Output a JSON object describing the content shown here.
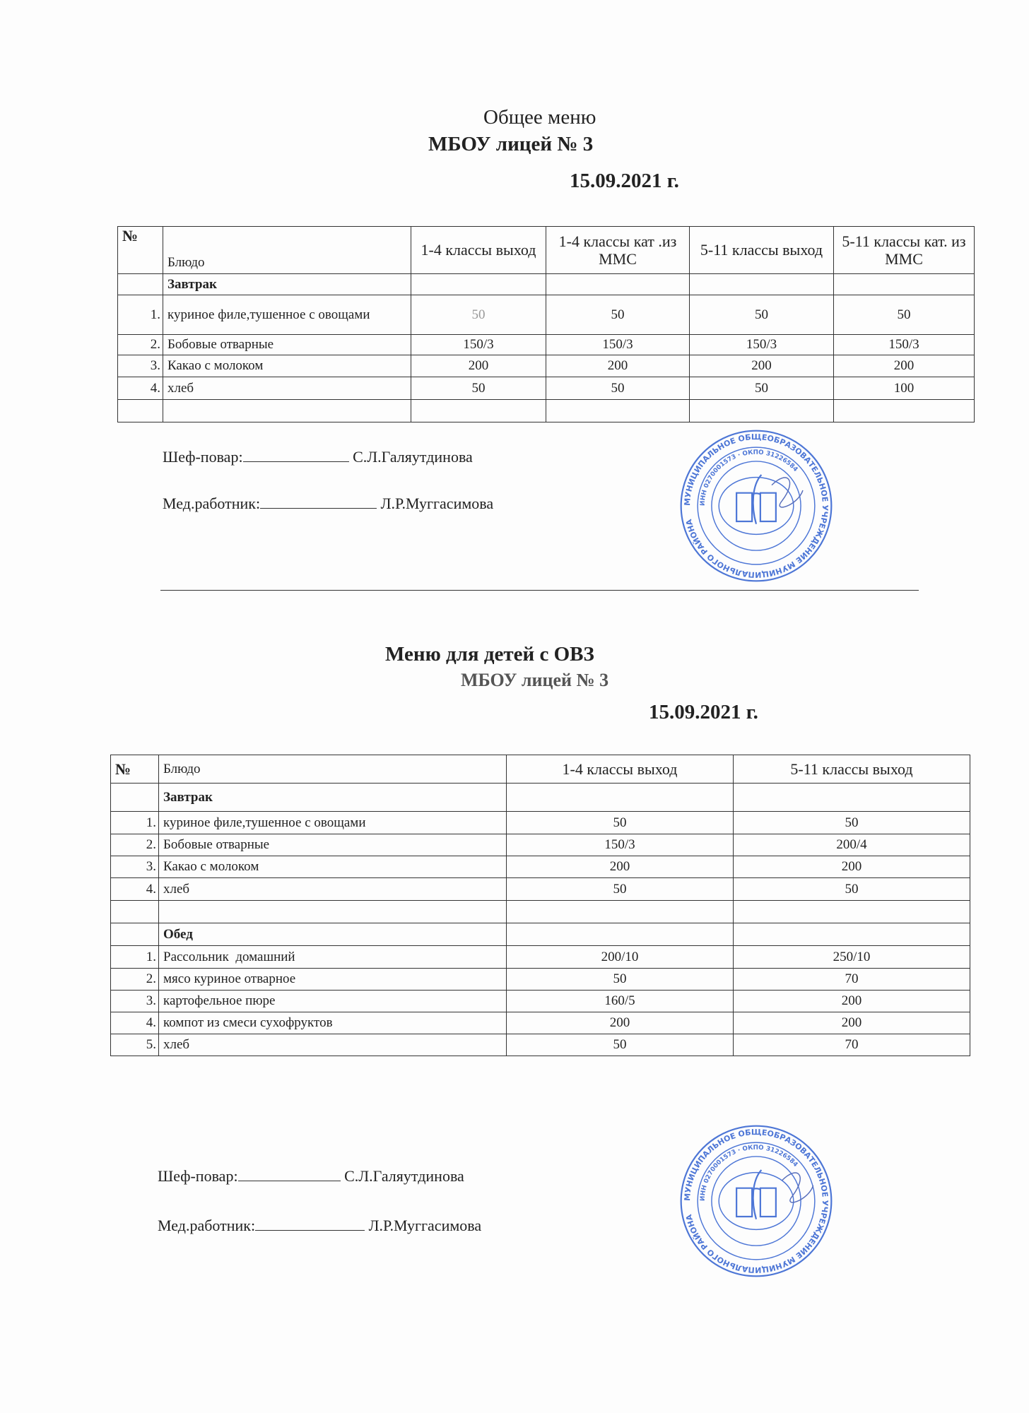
{
  "general": {
    "title": "Общее меню",
    "school": "МБОУ лицей № 3",
    "date": "15.09.2021 г.",
    "headers": [
      "№",
      "Блюдо",
      "1-4 классы выход",
      "1-4 классы кат .из ММС",
      "5-11 классы выход",
      "5-11 классы кат. из ММС"
    ],
    "section": "Завтрак",
    "rows": [
      {
        "n": "1.",
        "dish": "куриное филе,тушенное с овощами",
        "v": [
          "50",
          "50",
          "50",
          "50"
        ]
      },
      {
        "n": "2.",
        "dish": "Бобовые отварные",
        "v": [
          "150/3",
          "150/3",
          "150/3",
          "150/3"
        ]
      },
      {
        "n": "3.",
        "dish": "Какао с молоком",
        "v": [
          "200",
          "200",
          "200",
          "200"
        ]
      },
      {
        "n": "4.",
        "dish": "хлеб",
        "v": [
          "50",
          "50",
          "50",
          "100"
        ]
      }
    ],
    "signatures": [
      {
        "role": "Шеф-повар:",
        "name": "С.Л.Галяутдинова"
      },
      {
        "role": "Мед.работник:",
        "name": "Л.Р.Муггасимова"
      }
    ]
  },
  "ovz": {
    "title": "Меню для детей с ОВЗ",
    "school": "МБОУ лицей № 3",
    "date": "15.09.2021 г.",
    "headers": [
      "№",
      "Блюдо",
      "1-4 классы выход",
      "5-11 классы выход"
    ],
    "breakfast_section": "Завтрак",
    "breakfast": [
      {
        "n": "1.",
        "dish": "куриное филе,тушенное с овощами",
        "v": [
          "50",
          "50"
        ]
      },
      {
        "n": "2.",
        "dish": "Бобовые отварные",
        "v": [
          "150/3",
          "200/4"
        ]
      },
      {
        "n": "3.",
        "dish": "Какао с молоком",
        "v": [
          "200",
          "200"
        ]
      },
      {
        "n": "4.",
        "dish": "хлеб",
        "v": [
          "50",
          "50"
        ]
      }
    ],
    "lunch_section": "Обед",
    "lunch": [
      {
        "n": "1.",
        "dish": "Рассольник  домашний",
        "v": [
          "200/10",
          "250/10"
        ]
      },
      {
        "n": "2.",
        "dish": "мясо куриное отварное",
        "v": [
          "50",
          "70"
        ]
      },
      {
        "n": "3.",
        "dish": "картофельное пюре",
        "v": [
          "160/5",
          "200"
        ]
      },
      {
        "n": "4.",
        "dish": "компот из смеси сухофруктов",
        "v": [
          "200",
          "200"
        ]
      },
      {
        "n": "5.",
        "dish": "хлеб",
        "v": [
          "50",
          "70"
        ]
      }
    ],
    "signatures": [
      {
        "role": "Шеф-повар:",
        "name": "С.Л.Галяутдинова"
      },
      {
        "role": "Мед.работник:",
        "name": "Л.Р.Муггасимова"
      }
    ]
  },
  "stamp": {
    "outer_text": "МУНИЦИПАЛЬНОЕ ОБЩЕОБРАЗОВАТЕЛЬНОЕ УЧРЕЖДЕНИЕ МУНИЦИПАЛЬНОГО РАЙОНА",
    "inner_text": "ИНН 0270001573 · ОКПО 31226584",
    "color": "#2f5fd0"
  },
  "colors": {
    "ink": "#222222",
    "stamp": "#2f5fd0"
  }
}
